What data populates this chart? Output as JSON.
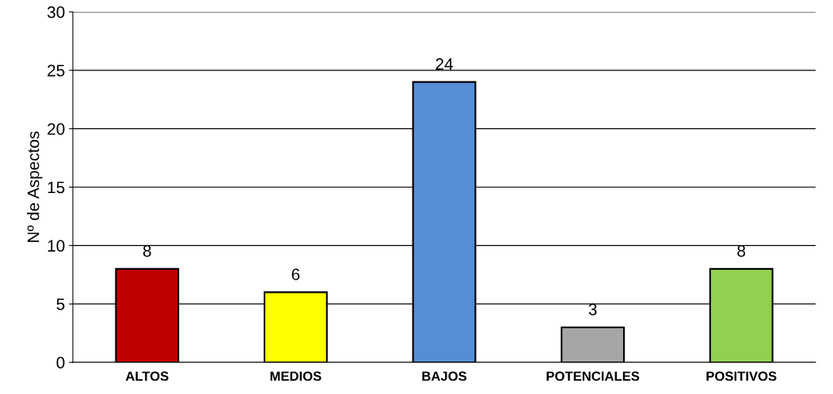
{
  "chart_data": {
    "type": "bar",
    "ylabel": "Nº de Aspectos",
    "categories": [
      "ALTOS",
      "MEDIOS",
      "BAJOS",
      "POTENCIALES",
      "POSITIVOS"
    ],
    "values": [
      8,
      6,
      24,
      3,
      8
    ],
    "colors": [
      "#c00000",
      "#ffff00",
      "#558ed5",
      "#a6a6a6",
      "#92d050"
    ],
    "ylim": [
      0,
      30
    ],
    "yticks": [
      0,
      5,
      10,
      15,
      20,
      25,
      30
    ],
    "grid": "y",
    "data_labels": true,
    "legend": false
  }
}
